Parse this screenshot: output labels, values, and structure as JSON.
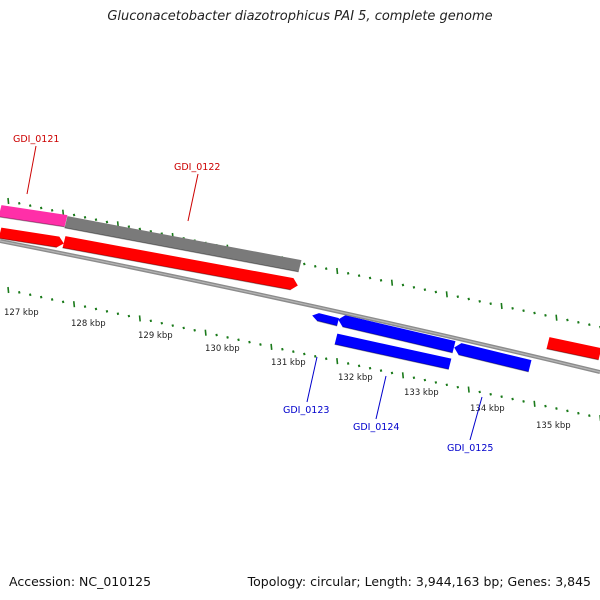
{
  "title": "Gluconacetobacter diazotrophicus PAI 5, complete genome",
  "accession_text": "Accession: NC_010125",
  "stats_text": "Topology: circular; Length: 3,944,163 bp; Genes: 3,845",
  "colors": {
    "background": "#ffffff",
    "backbone": "#8c8c8c",
    "forward_gene": "#ff0000",
    "reverse_gene": "#0000ff",
    "pink_feature": "#ff2fa8",
    "gray_feature": "#7a7a7a",
    "tick": "#1a7a1a",
    "label_red": "#cc0000",
    "label_blue": "#0000cc"
  },
  "scale_labels": [
    "127 kbp",
    "128 kbp",
    "129 kbp",
    "130 kbp",
    "131 kbp",
    "132 kbp",
    "133 kbp",
    "134 kbp",
    "135 kbp"
  ],
  "gene_labels": [
    {
      "text": "GDI_0121",
      "color": "#cc0000"
    },
    {
      "text": "GDI_0122",
      "color": "#cc0000"
    },
    {
      "text": "GDI_0123",
      "color": "#0000cc"
    },
    {
      "text": "GDI_0124",
      "color": "#0000cc"
    },
    {
      "text": "GDI_0125",
      "color": "#0000cc"
    }
  ]
}
